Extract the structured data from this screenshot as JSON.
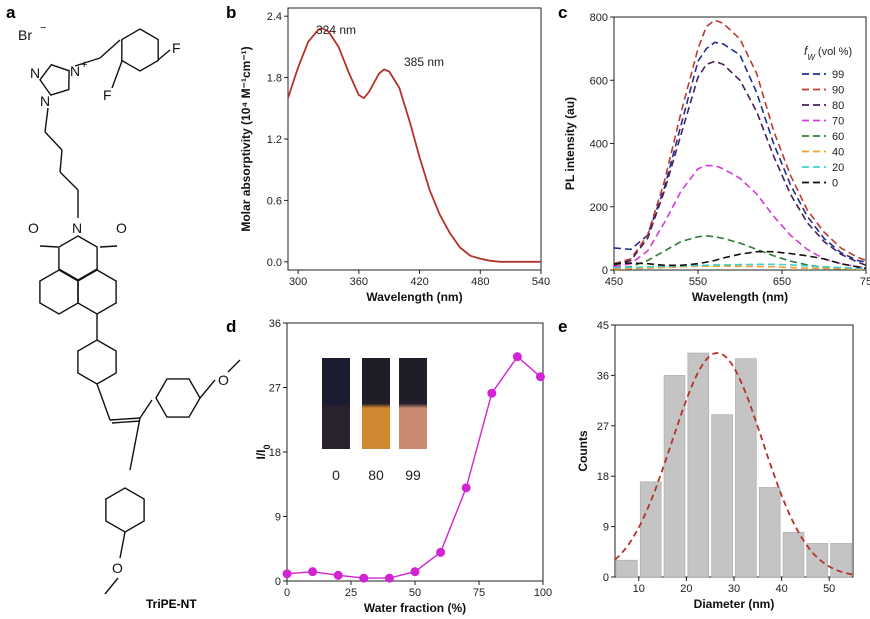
{
  "panel_labels": [
    "a",
    "b",
    "c",
    "d",
    "e"
  ],
  "structure": {
    "name": "TriPE-NT",
    "atoms": {
      "br": "Br",
      "minus": "−",
      "nplus": "N",
      "plus": "+",
      "n1": "N",
      "n2": "N",
      "f1": "F",
      "f2": "F",
      "o1": "O",
      "o2": "O",
      "nimide": "N",
      "o3": "O",
      "o4": "O"
    }
  },
  "chart_data": [
    {
      "id": "b",
      "type": "line",
      "xlabel": "Wavelength (nm)",
      "ylabel": "Molar absorptivity (10⁴ M⁻¹cm⁻¹)",
      "xlim": [
        290,
        540
      ],
      "ylim": [
        -0.08,
        2.48
      ],
      "xticks": [
        300,
        360,
        420,
        480,
        540
      ],
      "yticks": [
        "0.0",
        "0.6",
        "1.2",
        "1.8",
        "2.4"
      ],
      "color": "#b5322a",
      "annotations": [
        "324 nm",
        "385 nm"
      ],
      "x": [
        290,
        300,
        310,
        320,
        324,
        330,
        340,
        350,
        360,
        365,
        370,
        380,
        385,
        390,
        400,
        410,
        420,
        430,
        440,
        450,
        460,
        470,
        480,
        490,
        500,
        520,
        540
      ],
      "y": [
        1.6,
        1.9,
        2.15,
        2.27,
        2.28,
        2.25,
        2.1,
        1.85,
        1.63,
        1.6,
        1.66,
        1.84,
        1.88,
        1.86,
        1.7,
        1.38,
        1.02,
        0.7,
        0.46,
        0.28,
        0.14,
        0.06,
        0.03,
        0.01,
        0,
        0,
        0
      ]
    },
    {
      "id": "c",
      "type": "line",
      "xlabel": "Wavelength (nm)",
      "ylabel": "PL intensity (au)",
      "xlim": [
        450,
        750
      ],
      "ylim": [
        0,
        800
      ],
      "xticks": [
        "450",
        "550",
        "650",
        "75"
      ],
      "yticks": [
        0,
        200,
        400,
        600,
        800
      ],
      "legend_title": "f",
      "legend_sub": "W",
      "legend_unit": "(vol %)",
      "legend_placement": "top-right",
      "x": [
        450,
        470,
        490,
        510,
        530,
        550,
        560,
        570,
        580,
        600,
        620,
        640,
        660,
        680,
        700,
        720,
        740,
        750
      ],
      "series": [
        {
          "name": "99",
          "color": "#1f2f8f",
          "y": [
            70,
            65,
            110,
            260,
            460,
            660,
            700,
            720,
            715,
            680,
            560,
            400,
            270,
            170,
            100,
            55,
            30,
            25
          ]
        },
        {
          "name": "90",
          "color": "#c0392b",
          "y": [
            20,
            35,
            110,
            280,
            500,
            700,
            770,
            790,
            780,
            730,
            620,
            440,
            300,
            190,
            120,
            70,
            40,
            30
          ]
        },
        {
          "name": "80",
          "color": "#4a1f5f",
          "y": [
            15,
            30,
            100,
            250,
            430,
            610,
            650,
            660,
            650,
            600,
            500,
            360,
            240,
            150,
            90,
            50,
            25,
            15
          ]
        },
        {
          "name": "70",
          "color": "#d63ad6",
          "y": [
            10,
            20,
            60,
            150,
            250,
            320,
            330,
            330,
            320,
            290,
            240,
            170,
            110,
            65,
            35,
            20,
            10,
            8
          ]
        },
        {
          "name": "60",
          "color": "#2e7d32",
          "y": [
            5,
            10,
            30,
            60,
            90,
            105,
            108,
            105,
            100,
            85,
            65,
            45,
            28,
            16,
            8,
            4,
            2,
            2
          ]
        },
        {
          "name": "40",
          "color": "#f0a030",
          "y": [
            3,
            4,
            6,
            8,
            10,
            12,
            12,
            12,
            12,
            12,
            11,
            10,
            8,
            6,
            5,
            4,
            3,
            3
          ]
        },
        {
          "name": "20",
          "color": "#40d0d0",
          "y": [
            8,
            8,
            10,
            12,
            13,
            15,
            15,
            16,
            16,
            17,
            18,
            18,
            16,
            13,
            10,
            8,
            6,
            5
          ]
        },
        {
          "name": "0",
          "color": "#111111",
          "y": [
            20,
            22,
            20,
            15,
            15,
            20,
            25,
            30,
            38,
            50,
            58,
            58,
            52,
            45,
            35,
            20,
            10,
            5
          ]
        }
      ]
    },
    {
      "id": "d",
      "type": "line",
      "xlabel": "Water fraction (%)",
      "ylabel": "I/I",
      "ylabel_sub": "0",
      "xlim": [
        0,
        100
      ],
      "ylim": [
        0,
        36
      ],
      "xticks": [
        0,
        25,
        50,
        75,
        100
      ],
      "yticks": [
        0,
        9,
        18,
        27,
        36
      ],
      "color": "#d324d3",
      "x": [
        0,
        10,
        20,
        30,
        40,
        50,
        60,
        70,
        80,
        90,
        99
      ],
      "y": [
        1.0,
        1.3,
        0.8,
        0.4,
        0.4,
        1.3,
        4.0,
        13.0,
        26.2,
        31.3,
        28.5
      ],
      "inset_labels": [
        "0",
        "80",
        "99"
      ]
    },
    {
      "id": "e",
      "type": "bar",
      "xlabel": "Diameter (nm)",
      "ylabel": "Counts",
      "xlim": [
        5,
        55
      ],
      "ylim": [
        0,
        45
      ],
      "xticks": [
        10,
        20,
        30,
        40,
        50
      ],
      "yticks": [
        0,
        9,
        18,
        27,
        36,
        45
      ],
      "bar_color": "#c4c4c4",
      "fit_color": "#b5322a",
      "x": [
        7.5,
        12.5,
        17.5,
        22.5,
        27.5,
        32.5,
        37.5,
        42.5,
        47.5,
        52.5
      ],
      "values": [
        3,
        17,
        36,
        40,
        29,
        39,
        16,
        8,
        6,
        6
      ],
      "fit": {
        "type": "gaussian",
        "amplitude": 40,
        "center": 26.5,
        "sigma": 9.5
      }
    }
  ]
}
